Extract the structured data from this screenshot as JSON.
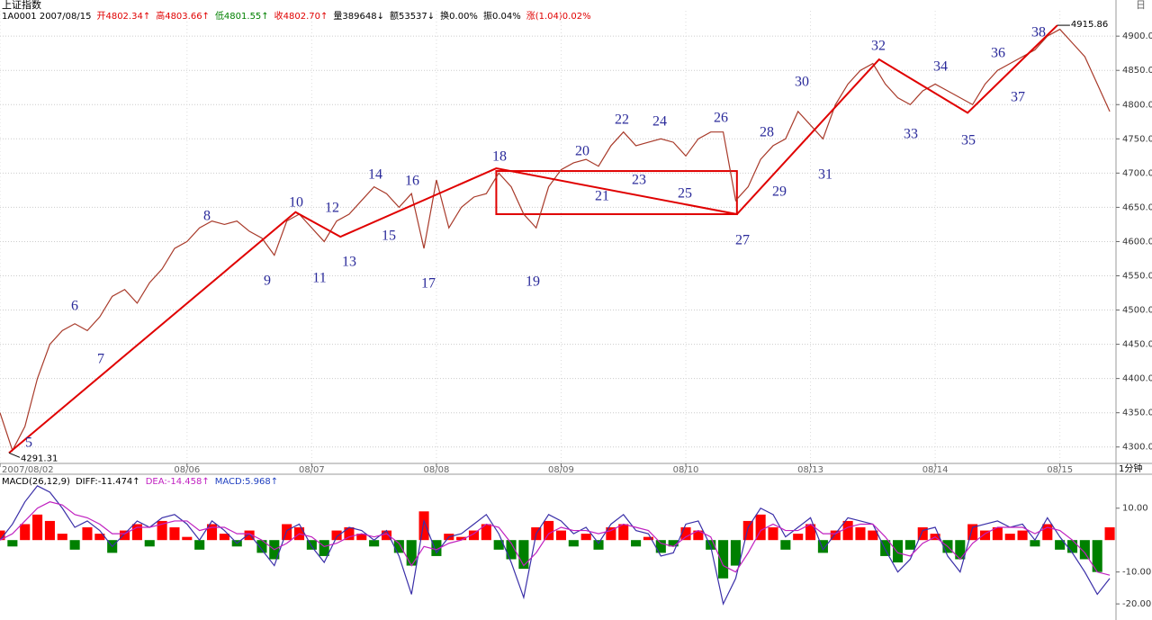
{
  "chart_data": [
    {
      "type": "line",
      "title": "上证指数",
      "quote": [
        {
          "text": "1A0001 2007/08/15",
          "color": "#000000"
        },
        {
          "text": "开4802.34↑",
          "color": "#e00000"
        },
        {
          "text": "高4803.66↑",
          "color": "#e00000"
        },
        {
          "text": "低4801.55↑",
          "color": "#008000"
        },
        {
          "text": "收4802.70↑",
          "color": "#e00000"
        },
        {
          "text": "量389648↓",
          "color": "#000000"
        },
        {
          "text": "额53537↓",
          "color": "#000000"
        },
        {
          "text": "换0.00%",
          "color": "#000000"
        },
        {
          "text": "振0.04%",
          "color": "#000000"
        },
        {
          "text": "涨(1.04)0.02%",
          "color": "#e00000"
        }
      ],
      "series": [
        {
          "color": "#a83a2a",
          "values": [
            4350,
            4295,
            4330,
            4400,
            4450,
            4470,
            4480,
            4470,
            4490,
            4520,
            4530,
            4510,
            4540,
            4560,
            4590,
            4600,
            4620,
            4630,
            4625,
            4630,
            4615,
            4605,
            4580,
            4630,
            4640,
            4620,
            4600,
            4630,
            4640,
            4660,
            4680,
            4670,
            4650,
            4670,
            4590,
            4690,
            4620,
            4650,
            4665,
            4670,
            4700,
            4680,
            4640,
            4620,
            4680,
            4705,
            4715,
            4720,
            4710,
            4740,
            4760,
            4740,
            4745,
            4750,
            4745,
            4725,
            4750,
            4760,
            4760,
            4660,
            4680,
            4720,
            4740,
            4750,
            4790,
            4770,
            4750,
            4800,
            4830,
            4850,
            4860,
            4830,
            4810,
            4800,
            4820,
            4830,
            4820,
            4810,
            4800,
            4830,
            4850,
            4860,
            4870,
            4880,
            4900,
            4910,
            4890,
            4870,
            4830,
            4790
          ]
        },
        {
          "color": "#e00000",
          "x": [
            0.72,
            23.7,
            27.3,
            39.8,
            59.1,
            70.5,
            77.6,
            84.8
          ],
          "values": [
            4291.31,
            4643,
            4607,
            4707,
            4640,
            4866,
            4788,
            4915.86
          ]
        }
      ],
      "xlim": [
        0,
        89.5
      ],
      "xticks": [
        {
          "value": 0,
          "label": "2007/08/02"
        },
        {
          "value": 15,
          "label": "08/06"
        },
        {
          "value": 25,
          "label": "08/07"
        },
        {
          "value": 35,
          "label": "08/08"
        },
        {
          "value": 45,
          "label": "08/09"
        },
        {
          "value": 55,
          "label": "08/10"
        },
        {
          "value": 65,
          "label": "08/13"
        },
        {
          "value": 75,
          "label": "08/14"
        },
        {
          "value": 85,
          "label": "08/15"
        }
      ],
      "ylim": [
        4276,
        4937
      ],
      "yticks": [
        {
          "value": 4300,
          "label": "4300.00"
        },
        {
          "value": 4350,
          "label": "4350.00"
        },
        {
          "value": 4400,
          "label": "4400.00"
        },
        {
          "value": 4450,
          "label": "4450.00"
        },
        {
          "value": 4500,
          "label": "4500.00"
        },
        {
          "value": 4550,
          "label": "4550.00"
        },
        {
          "value": 4600,
          "label": "4600.00"
        },
        {
          "value": 4650,
          "label": "4650.00"
        },
        {
          "value": 4700,
          "label": "4700.00"
        },
        {
          "value": 4750,
          "label": "4750.00"
        },
        {
          "value": 4800,
          "label": "4800.00"
        },
        {
          "value": 4850,
          "label": "4850.00"
        },
        {
          "value": 4900,
          "label": "4900.00"
        }
      ],
      "grid": true,
      "box": {
        "x": [
          39.8,
          59.1
        ],
        "y": [
          4640,
          4703
        ],
        "color": "#e00000"
      },
      "annotations": [
        "5",
        "6",
        "7",
        "8",
        "9",
        "10",
        "11",
        "12",
        "13",
        "14",
        "15",
        "16",
        "17",
        "18",
        "19",
        "20",
        "21",
        "22",
        "23",
        "24",
        "25",
        "26",
        "27",
        "28",
        "29",
        "30",
        "31",
        "32",
        "33",
        "34",
        "35",
        "36",
        "37",
        "38"
      ],
      "corner_label": "日",
      "period_label": "1分钟"
    },
    {
      "type": "macd",
      "title": "MACD(26,12,9)",
      "series": [
        {
          "name": "DIFF:-11.474↑",
          "color": "#3a2fa8",
          "values": [
            0,
            5,
            12,
            17,
            15,
            10,
            4,
            6,
            3,
            -2,
            2,
            6,
            4,
            7,
            8,
            5,
            0,
            6,
            3,
            -1,
            2,
            -3,
            -8,
            3,
            5,
            -2,
            -7,
            1,
            4,
            3,
            0,
            3,
            -5,
            -17,
            6,
            -4,
            1,
            2,
            5,
            8,
            2,
            -7,
            -18,
            2,
            8,
            6,
            2,
            4,
            -1,
            5,
            8,
            3,
            2,
            -5,
            -4,
            5,
            6,
            -2,
            -20,
            -12,
            4,
            10,
            8,
            1,
            4,
            7,
            -3,
            2,
            7,
            6,
            5,
            -3,
            -10,
            -6,
            3,
            4,
            -5,
            -10,
            4,
            5,
            6,
            4,
            5,
            0,
            7,
            1,
            -4,
            -10,
            -17,
            -12
          ]
        },
        {
          "name": "DEA:-14.458↑",
          "color": "#c020c0",
          "values": [
            0,
            2,
            6,
            10,
            12,
            11,
            8,
            7,
            5,
            2,
            2,
            4,
            4,
            5,
            6,
            6,
            3,
            4,
            4,
            2,
            2,
            0,
            -3,
            -1,
            2,
            1,
            -2,
            -1,
            1,
            2,
            1,
            2,
            -1,
            -8,
            -2,
            -3,
            -1,
            0,
            2,
            5,
            4,
            -1,
            -8,
            -4,
            2,
            4,
            3,
            3,
            2,
            3,
            5,
            4,
            3,
            -1,
            -2,
            1,
            3,
            1,
            -8,
            -10,
            -4,
            3,
            5,
            3,
            3,
            5,
            2,
            2,
            4,
            5,
            5,
            1,
            -4,
            -5,
            -1,
            1,
            -2,
            -6,
            -1,
            2,
            4,
            4,
            4,
            2,
            4,
            3,
            0,
            -4,
            -10,
            -11
          ]
        },
        {
          "name": "MACD:5.968↑",
          "color": "#2040c0",
          "kind": "bar",
          "values": [
            3,
            -2,
            5,
            8,
            6,
            2,
            -3,
            4,
            2,
            -4,
            3,
            5,
            -2,
            6,
            4,
            1,
            -3,
            5,
            2,
            -2,
            3,
            -4,
            -6,
            5,
            4,
            -3,
            -5,
            3,
            4,
            2,
            -2,
            3,
            -4,
            -8,
            9,
            -5,
            2,
            1,
            3,
            5,
            -3,
            -6,
            -9,
            4,
            6,
            3,
            -2,
            2,
            -3,
            4,
            5,
            -2,
            1,
            -4,
            -2,
            4,
            3,
            -3,
            -12,
            -8,
            6,
            8,
            4,
            -3,
            2,
            5,
            -4,
            3,
            6,
            4,
            3,
            -5,
            -7,
            -3,
            4,
            2,
            -4,
            -6,
            5,
            3,
            4,
            2,
            3,
            -2,
            5,
            -3,
            -4,
            -6,
            -10,
            4
          ]
        }
      ],
      "up_color": "#ff0000",
      "down_color": "#008000",
      "xlim": [
        0,
        89.5
      ],
      "ylim": [
        -24.2,
        19.8
      ],
      "yticks": [
        {
          "value": 10,
          "label": "10.00"
        },
        {
          "value": -10,
          "label": "-10.00"
        },
        {
          "value": -20,
          "label": "-20.00"
        }
      ]
    }
  ]
}
